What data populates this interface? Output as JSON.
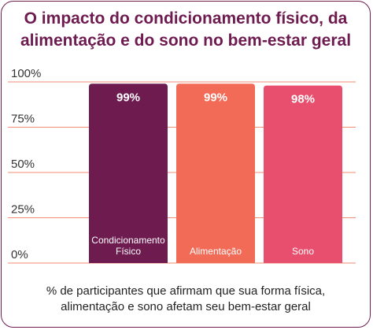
{
  "title_lines": [
    "O impacto do condicionamento físico, da",
    "alimentação e do sono no bem-estar geral"
  ],
  "caption_lines": [
    "% de participantes que afirmam que sua forma física,",
    "alimentação e sono afetam seu bem-estar geral"
  ],
  "colors": {
    "title": "#6e1b50",
    "grid": "#f28c72",
    "border": "#6e1b50"
  },
  "chart_data": {
    "type": "bar",
    "title": "O impacto do condicionamento físico, da alimentação e do sono no bem-estar geral",
    "xlabel": "",
    "ylabel": "",
    "ylim": [
      0,
      100
    ],
    "yticks": [
      0,
      25,
      50,
      75,
      100
    ],
    "ytick_labels": [
      "0%",
      "25%",
      "50%",
      "75%",
      "100%"
    ],
    "grid": true,
    "categories": [
      {
        "label_lines": [
          "Condicionamento",
          "Físico"
        ],
        "value": 99,
        "value_label": "99%",
        "color": "#6e1b50"
      },
      {
        "label_lines": [
          "Alimentação"
        ],
        "value": 99,
        "value_label": "99%",
        "color": "#f26b57"
      },
      {
        "label_lines": [
          "Sono"
        ],
        "value": 98,
        "value_label": "98%",
        "color": "#e84f6e"
      }
    ]
  }
}
